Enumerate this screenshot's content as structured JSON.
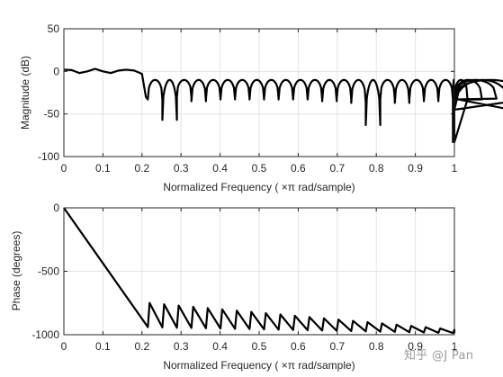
{
  "chart_data": [
    {
      "type": "line",
      "title": "",
      "xlabel": "Normalized Frequency  ( ×π rad/sample)",
      "ylabel": "Magnitude (dB)",
      "xlim": [
        0,
        1
      ],
      "ylim": [
        -100,
        50
      ],
      "xticks": [
        "0",
        "0.1",
        "0.2",
        "0.3",
        "0.4",
        "0.5",
        "0.6",
        "0.7",
        "0.8",
        "0.9",
        "1"
      ],
      "yticks": [
        "50",
        "0",
        "-50",
        "-100"
      ],
      "grid": true,
      "series": [
        {
          "x": [
            0,
            0.02,
            0.04,
            0.06,
            0.08,
            0.1,
            0.12,
            0.14,
            0.16,
            0.18,
            0.2,
            0.21
          ],
          "y": [
            2,
            1.5,
            -2,
            0,
            3,
            0,
            -2,
            1,
            2,
            1,
            -3,
            -30
          ]
        }
      ],
      "stopband": {
        "start": 0.215,
        "end": 1.0,
        "lobe_width": 0.0372,
        "lobe_peak_db": -10,
        "null_db": [
          -33,
          -57,
          -30,
          -35,
          -32,
          -33,
          -32,
          -33,
          -32,
          -33,
          -33,
          -33,
          -35,
          -33,
          -37,
          -63,
          -33,
          -37,
          -33,
          -35,
          -33,
          -83,
          -33,
          -33,
          -32,
          -45,
          -33
        ]
      }
    },
    {
      "type": "line",
      "title": "",
      "xlabel": "Normalized Frequency  ( ×π rad/sample)",
      "ylabel": "Phase (degrees)",
      "xlim": [
        0,
        1
      ],
      "ylim": [
        -1000,
        0
      ],
      "xticks": [
        "0",
        "0.1",
        "0.2",
        "0.3",
        "0.4",
        "0.5",
        "0.6",
        "0.7",
        "0.8",
        "0.9",
        "1"
      ],
      "yticks": [
        "0",
        "-500",
        "-1000"
      ],
      "grid": true,
      "series": [
        {
          "x": [
            0,
            0.215
          ],
          "y": [
            0,
            -940
          ]
        }
      ],
      "sawtooth": {
        "start": 0.215,
        "end": 1.0,
        "period": 0.0372,
        "peak_deg": -750,
        "peak_decline_per_unit": 270,
        "trough_deg": -940,
        "trough_decline_per_unit": 60
      }
    }
  ],
  "watermark": "知乎 @J Pan"
}
